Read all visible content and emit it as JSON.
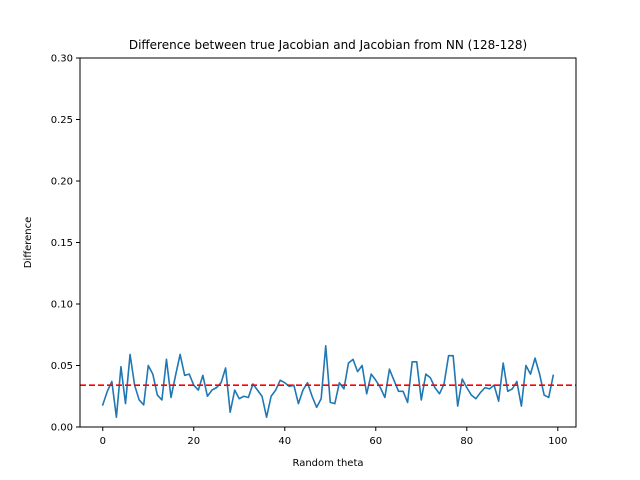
{
  "chart_data": {
    "type": "line",
    "title": "Difference between true Jacobian and Jacobian from NN (128-128)",
    "xlabel": "Random theta",
    "ylabel": "Difference",
    "xlim": [
      -5,
      104
    ],
    "ylim": [
      0.0,
      0.3
    ],
    "xticks": [
      0,
      20,
      40,
      60,
      80,
      100
    ],
    "xtick_labels": [
      "0",
      "20",
      "40",
      "60",
      "80",
      "100"
    ],
    "yticks": [
      0.0,
      0.05,
      0.1,
      0.15,
      0.2,
      0.25,
      0.3
    ],
    "ytick_labels": [
      "0.00",
      "0.05",
      "0.10",
      "0.15",
      "0.20",
      "0.25",
      "0.30"
    ],
    "grid": false,
    "legend": "none",
    "series": [
      {
        "color": "#1f77b4",
        "x": [
          0,
          1,
          2,
          3,
          4,
          5,
          6,
          7,
          8,
          9,
          10,
          11,
          12,
          13,
          14,
          15,
          16,
          17,
          18,
          19,
          20,
          21,
          22,
          23,
          24,
          25,
          26,
          27,
          28,
          29,
          30,
          31,
          32,
          33,
          34,
          35,
          36,
          37,
          38,
          39,
          40,
          41,
          42,
          43,
          44,
          45,
          46,
          47,
          48,
          49,
          50,
          51,
          52,
          53,
          54,
          55,
          56,
          57,
          58,
          59,
          60,
          61,
          62,
          63,
          64,
          65,
          66,
          67,
          68,
          69,
          70,
          71,
          72,
          73,
          74,
          75,
          76,
          77,
          78,
          79,
          80,
          81,
          82,
          83,
          84,
          85,
          86,
          87,
          88,
          89,
          90,
          91,
          92,
          93,
          94,
          95,
          96,
          97,
          98,
          99
        ],
        "values": [
          0.018,
          0.029,
          0.037,
          0.008,
          0.049,
          0.019,
          0.059,
          0.034,
          0.022,
          0.018,
          0.05,
          0.043,
          0.026,
          0.022,
          0.055,
          0.024,
          0.042,
          0.059,
          0.042,
          0.043,
          0.034,
          0.03,
          0.042,
          0.025,
          0.03,
          0.032,
          0.036,
          0.048,
          0.012,
          0.03,
          0.023,
          0.025,
          0.024,
          0.035,
          0.03,
          0.025,
          0.008,
          0.025,
          0.03,
          0.038,
          0.036,
          0.033,
          0.034,
          0.019,
          0.03,
          0.036,
          0.025,
          0.016,
          0.023,
          0.066,
          0.02,
          0.019,
          0.036,
          0.031,
          0.052,
          0.055,
          0.045,
          0.05,
          0.027,
          0.043,
          0.038,
          0.032,
          0.024,
          0.047,
          0.038,
          0.029,
          0.029,
          0.02,
          0.053,
          0.053,
          0.022,
          0.043,
          0.04,
          0.032,
          0.027,
          0.035,
          0.058,
          0.058,
          0.017,
          0.039,
          0.032,
          0.026,
          0.023,
          0.028,
          0.032,
          0.031,
          0.034,
          0.021,
          0.052,
          0.029,
          0.031,
          0.037,
          0.017,
          0.05,
          0.043,
          0.056,
          0.043,
          0.026,
          0.024,
          0.042
        ]
      }
    ],
    "reference_line": {
      "y": 0.034,
      "color": "#ff0000",
      "style": "dashed"
    }
  }
}
